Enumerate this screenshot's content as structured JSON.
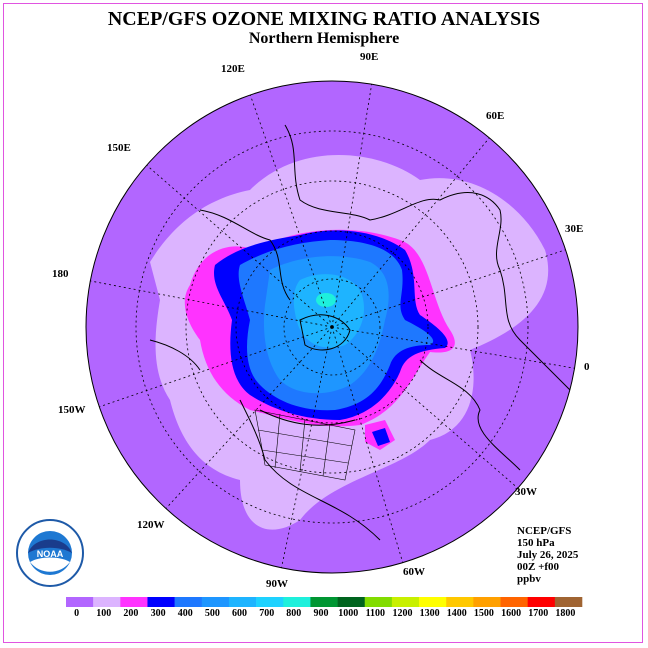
{
  "title": "NCEP/GFS OZONE MIXING RATIO ANALYSIS",
  "subtitle": "Northern Hemisphere",
  "longitude_labels": [
    "90E",
    "60E",
    "30E",
    "0",
    "30W",
    "60W",
    "90W",
    "120W",
    "150W",
    "180",
    "150E",
    "120E"
  ],
  "info": {
    "source": "NCEP/GFS",
    "level": "150 hPa",
    "date": "July 26, 2025",
    "run": "00Z +f00",
    "units": "ppbv"
  },
  "logo": {
    "text": "NOAA",
    "ring_text": "NATIONAL OCEANIC AND ATMOSPHERIC ADMINISTRATION U.S. DEPARTMENT OF COMMERCE"
  },
  "colorbar": {
    "labels": [
      "0",
      "100",
      "200",
      "300",
      "400",
      "500",
      "600",
      "700",
      "800",
      "900",
      "1000",
      "1100",
      "1200",
      "1300",
      "1400",
      "1500",
      "1600",
      "1700",
      "1800"
    ],
    "colors": [
      "#b266ff",
      "#dcb4ff",
      "#ff33ff",
      "#0000ff",
      "#1e78ff",
      "#1e96ff",
      "#1eb4ff",
      "#1ed2ff",
      "#1ef0dc",
      "#009632",
      "#00641e",
      "#82dc00",
      "#c8f000",
      "#ffff00",
      "#ffc800",
      "#ffa000",
      "#ff6400",
      "#ff0000",
      "#a06432"
    ]
  },
  "map_colors": {
    "background": "#b266ff",
    "light": "#dcb4ff",
    "magenta": "#ff33ff",
    "blue": "#0000ff",
    "mid": "#1e78ff",
    "light_blue": "#1e96ff",
    "cyan": "#1eb4ff",
    "aqua": "#1ef0dc"
  }
}
